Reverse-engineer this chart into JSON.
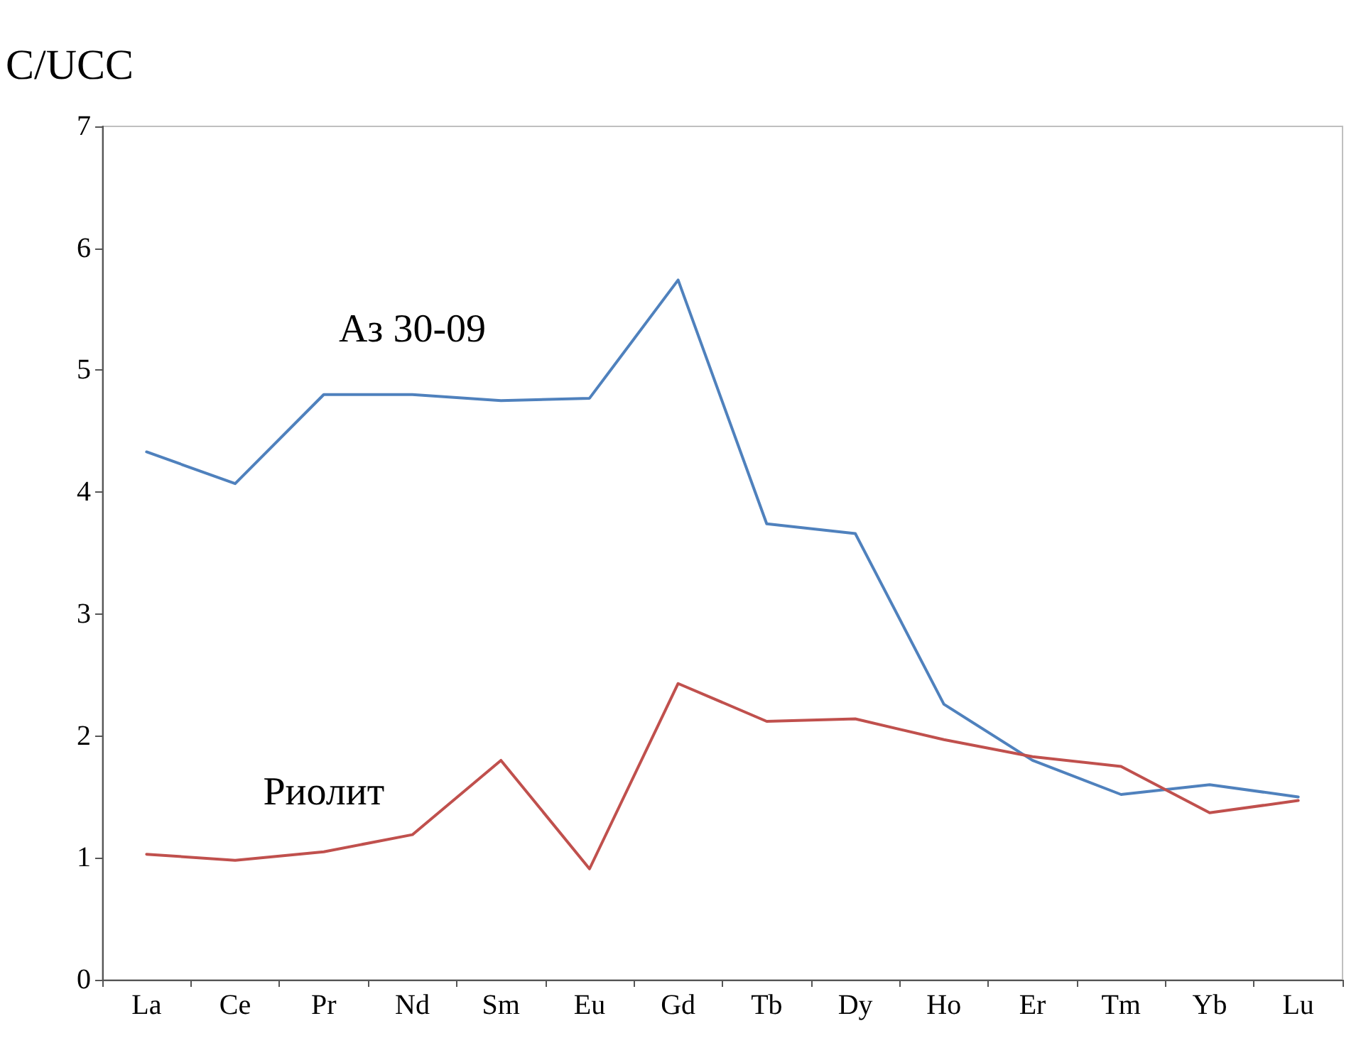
{
  "chart_data": {
    "type": "line",
    "ylabel": "C/UCC",
    "categories": [
      "La",
      "Ce",
      "Pr",
      "Nd",
      "Sm",
      "Eu",
      "Gd",
      "Tb",
      "Dy",
      "Ho",
      "Er",
      "Tm",
      "Yb",
      "Lu"
    ],
    "series": [
      {
        "name": "Аз 30-09",
        "color": "#4f81bd",
        "values": [
          4.33,
          4.07,
          4.8,
          4.8,
          4.75,
          4.77,
          5.74,
          3.74,
          3.66,
          2.26,
          1.8,
          1.52,
          1.6,
          1.5
        ]
      },
      {
        "name": "Риолит",
        "color": "#c0504d",
        "values": [
          1.03,
          0.98,
          1.05,
          1.19,
          1.8,
          0.91,
          2.43,
          2.12,
          2.14,
          1.97,
          1.83,
          1.75,
          1.37,
          1.47
        ]
      }
    ],
    "ylim": [
      0,
      7
    ],
    "yticks": [
      0,
      1,
      2,
      3,
      4,
      5,
      6,
      7
    ],
    "grid": false,
    "legend": false,
    "marker": "none",
    "line_style": "solid"
  }
}
